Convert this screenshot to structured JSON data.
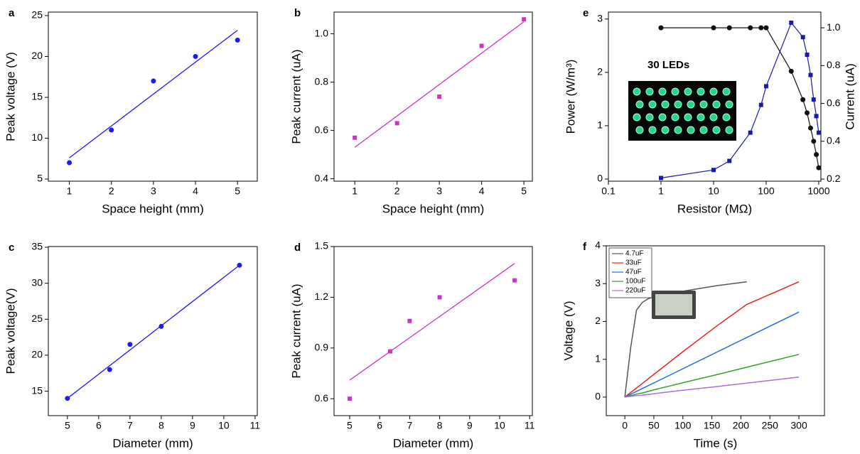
{
  "chart_data": [
    {
      "type": "scatter",
      "panel_label": "a",
      "xlabel": "Space height (mm)",
      "ylabel": "Peak voltage (V)",
      "x": [
        1,
        2,
        3,
        4,
        5
      ],
      "values": [
        7,
        11,
        17,
        20,
        22
      ],
      "color": "#1a1aff",
      "marker": "circle",
      "fit_line": {
        "x": [
          1,
          5
        ],
        "values": [
          7.6,
          23.2
        ],
        "color": "#1a1aff"
      },
      "xlim": [
        0.5,
        5.47
      ],
      "xticks": [
        1,
        2,
        3,
        4,
        5
      ],
      "ylim": [
        4.74,
        25.43
      ],
      "yticks": [
        5,
        10,
        15,
        20,
        25
      ]
    },
    {
      "type": "scatter",
      "panel_label": "b",
      "xlabel": "Space height (mm)",
      "ylabel": "Peak current (uA)",
      "x": [
        1,
        2,
        3,
        4,
        5
      ],
      "values": [
        0.57,
        0.63,
        0.74,
        0.95,
        1.06
      ],
      "color": "#cc33cc",
      "marker": "square",
      "fit_line": {
        "x": [
          1,
          5
        ],
        "values": [
          0.53,
          1.05
        ],
        "color": "#cc33cc"
      },
      "xlim": [
        0.51,
        5.2
      ],
      "xticks": [
        1,
        2,
        3,
        4,
        5
      ],
      "ylim": [
        0.39,
        1.09
      ],
      "yticks": [
        0.4,
        0.6,
        0.8,
        {
          "value": 1,
          "label": "1.0"
        }
      ]
    },
    {
      "type": "scatter",
      "panel_label": "c",
      "xlabel": "Diameter (mm)",
      "ylabel": "Peak voltage(V)",
      "x": [
        5,
        6.35,
        7,
        8,
        10.5
      ],
      "values": [
        14,
        18,
        21.5,
        24,
        32.5
      ],
      "color": "#1a1aff",
      "marker": "circle",
      "fit_line": {
        "x": [
          5,
          10.5
        ],
        "values": [
          14,
          32.5
        ],
        "color": "#1a1aff"
      },
      "xlim": [
        4.39,
        11.07
      ],
      "xticks": [
        5,
        6,
        7,
        8,
        9,
        10,
        11
      ],
      "ylim": [
        11.6,
        35.1
      ],
      "yticks": [
        15,
        20,
        25,
        30,
        35
      ]
    },
    {
      "type": "scatter",
      "panel_label": "d",
      "xlabel": "Diameter (mm)",
      "ylabel": "Peak current (uA)",
      "x": [
        5,
        6.35,
        7,
        8,
        10.5
      ],
      "values": [
        0.6,
        0.88,
        1.06,
        1.2,
        1.3
      ],
      "color": "#cc33cc",
      "marker": "square",
      "fit_line": {
        "x": [
          5,
          10.5
        ],
        "values": [
          0.71,
          1.4
        ],
        "color": "#cc33cc"
      },
      "xlim": [
        4.48,
        11.09
      ],
      "xticks": [
        5,
        6,
        7,
        8,
        9,
        10,
        11
      ],
      "ylim": [
        0.5,
        1.5
      ],
      "yticks": [
        0.6,
        0.9,
        1.2,
        1.5
      ]
    },
    {
      "type": "scatter",
      "panel_label": "e",
      "xlabel": "Resistor (MΩ)",
      "ylabel": "Power (W/m³)",
      "y2label": "Current (uA)",
      "annotation": "30 LEDs",
      "x_scale": "log",
      "x": [
        1,
        10,
        20,
        50,
        80,
        100,
        300,
        500,
        600,
        700,
        800,
        900,
        1000
      ],
      "series": [
        {
          "color": "#1a1aaa",
          "marker": "square",
          "connect": true,
          "values": [
            0.02,
            0.17,
            0.34,
            0.87,
            1.39,
            1.74,
            2.93,
            2.66,
            2.33,
            1.95,
            1.49,
            1.18,
            0.87
          ]
        },
        {
          "color": "#111111",
          "marker": "circle",
          "connect": true,
          "axis": "y2",
          "values": [
            1.0,
            1.0,
            1.0,
            1.0,
            1.0,
            1.0,
            0.77,
            0.62,
            0.55,
            0.47,
            0.4,
            0.33,
            0.26
          ]
        }
      ],
      "xlim": [
        0.1,
        1100
      ],
      "xticks": [
        0.1,
        1,
        10,
        100,
        1000
      ],
      "ylim": [
        -0.04,
        3.13
      ],
      "yticks": [
        0,
        1,
        2,
        3
      ],
      "y2lim": [
        0.189,
        1.083
      ],
      "y2ticks": [
        0.2,
        0.4,
        0.6,
        0.8,
        {
          "value": 1,
          "label": "1.0"
        }
      ]
    },
    {
      "type": "line",
      "panel_label": "f",
      "xlabel": "Time (s)",
      "ylabel": "Voltage (V)",
      "x": [
        0,
        10,
        20,
        30,
        40,
        60,
        100,
        160,
        210,
        300
      ],
      "series": [
        {
          "name": "4.7uF",
          "color": "#555555",
          "values": [
            0,
            1.3,
            2.3,
            2.5,
            2.6,
            2.7,
            2.8,
            2.95,
            3.05,
            null
          ]
        },
        {
          "name": "33uF",
          "color": "#ee2222",
          "values": [
            0,
            0.12,
            0.24,
            0.36,
            0.48,
            0.72,
            1.2,
            1.9,
            2.45,
            3.05
          ]
        },
        {
          "name": "47uF",
          "color": "#1f6fe0",
          "values": [
            0,
            0.075,
            0.15,
            0.225,
            0.3,
            0.45,
            0.75,
            1.2,
            1.575,
            2.25
          ]
        },
        {
          "name": "100uF",
          "color": "#2ca02c",
          "values": [
            0,
            0.04,
            0.08,
            0.11,
            0.15,
            0.23,
            0.38,
            0.6,
            0.79,
            1.13
          ]
        },
        {
          "name": "220uF",
          "color": "#b36ae2",
          "values": [
            0,
            0.02,
            0.04,
            0.05,
            0.07,
            0.11,
            0.18,
            0.28,
            0.37,
            0.53
          ]
        }
      ],
      "xlim": [
        -32,
        344
      ],
      "xticks": [
        0,
        50,
        100,
        150,
        200,
        250,
        300
      ],
      "ylim": [
        -0.49,
        4
      ],
      "yticks": [
        0,
        1,
        2,
        3,
        4
      ]
    }
  ]
}
